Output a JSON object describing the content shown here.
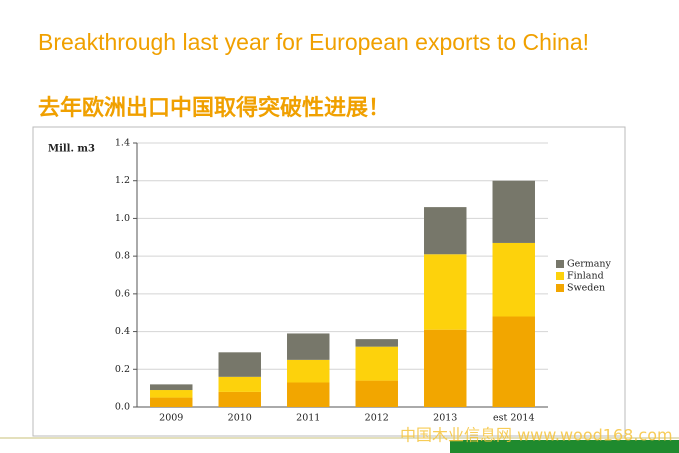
{
  "title": "Breakthrough last year for European exports to China!",
  "subtitle": "去年欧洲出口中国取得突破性进展！",
  "watermark": "中国木业信息网 www.wood168.com",
  "chart_data": {
    "type": "stacked-bar",
    "y_label": "Mill. m3",
    "categories": [
      "2009",
      "2010",
      "2011",
      "2012",
      "2013",
      "est 2014"
    ],
    "series": [
      {
        "name": "Sweden",
        "color": "#f2a600",
        "values": [
          0.05,
          0.08,
          0.13,
          0.14,
          0.41,
          0.48
        ]
      },
      {
        "name": "Finland",
        "color": "#fdd20c",
        "values": [
          0.04,
          0.08,
          0.12,
          0.18,
          0.4,
          0.39
        ]
      },
      {
        "name": "Germany",
        "color": "#77776a",
        "values": [
          0.03,
          0.13,
          0.14,
          0.04,
          0.25,
          0.33
        ]
      }
    ],
    "ylim": [
      0,
      1.4
    ],
    "yticks": [
      {
        "value": 0,
        "label": "0.0"
      },
      0.2,
      0.4,
      0.6,
      0.8,
      {
        "value": 1,
        "label": "1.0"
      },
      1.2,
      1.4
    ],
    "grid": true
  }
}
